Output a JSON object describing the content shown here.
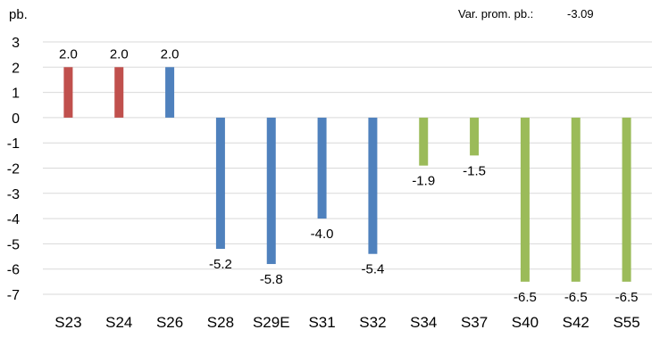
{
  "chart_data": {
    "type": "bar",
    "ylabel": "pb.",
    "annotation": {
      "label": "Var. prom. pb.:",
      "value": "-3.09"
    },
    "categories": [
      "S23",
      "S24",
      "S26",
      "S28",
      "S29E",
      "S31",
      "S32",
      "S34",
      "S37",
      "S40",
      "S42",
      "S55"
    ],
    "values": [
      2.0,
      2.0,
      2.0,
      -5.2,
      -5.8,
      -4.0,
      -5.4,
      -1.9,
      -1.5,
      -6.5,
      -6.5,
      -6.5
    ],
    "data_labels": [
      "2.0",
      "2.0",
      "2.0",
      "-5.2",
      "-5.8",
      "-4.0",
      "-5.4",
      "-1.9",
      "-1.5",
      "-6.5",
      "-6.5",
      "-6.5"
    ],
    "bar_colors": [
      "#c0504d",
      "#c0504d",
      "#4f81bd",
      "#4f81bd",
      "#4f81bd",
      "#4f81bd",
      "#4f81bd",
      "#9bbb59",
      "#9bbb59",
      "#9bbb59",
      "#9bbb59",
      "#9bbb59"
    ],
    "yticks": [
      "3",
      "2",
      "1",
      "0",
      "-1",
      "-2",
      "-3",
      "-4",
      "-5",
      "-6",
      "-7"
    ],
    "ylim": [
      -7,
      3
    ],
    "grid": true,
    "legend": "none"
  }
}
